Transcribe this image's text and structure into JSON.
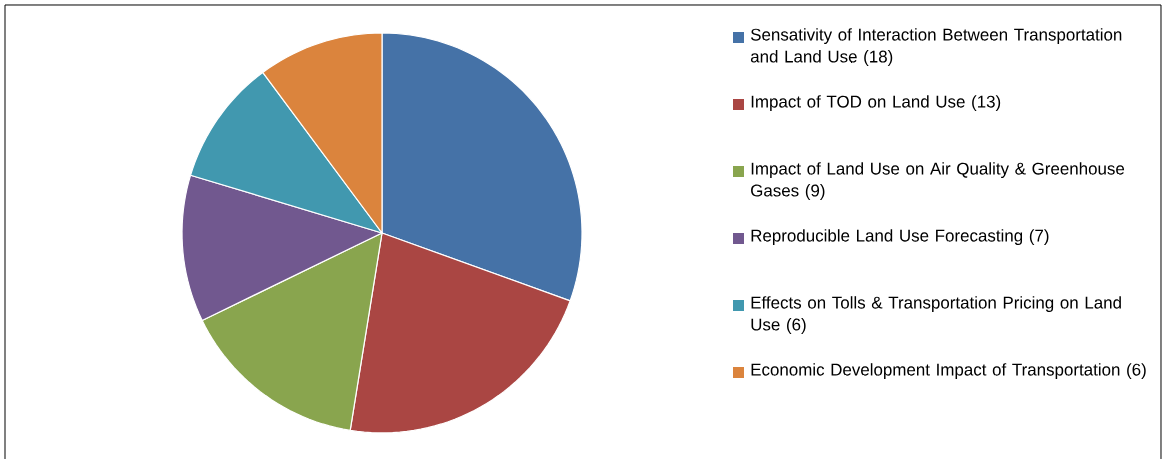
{
  "chart_data": {
    "type": "pie",
    "categories": [
      "Sensativity of Interaction Between Transportation and Land Use (18)",
      "Impact of TOD on Land Use (13)",
      "Impact of Land Use on Air Quality & Greenhouse Gases (9)",
      "Reproducible Land Use Forecasting (7)",
      "Effects on Tolls & Transportation Pricing on Land Use (6)",
      "Economic Development Impact of Transportation (6)"
    ],
    "values": [
      18,
      13,
      9,
      7,
      6,
      6
    ],
    "colors": [
      "#4572a7",
      "#aa4643",
      "#89a54e",
      "#71588f",
      "#4198af",
      "#db843d"
    ],
    "legend": "right"
  }
}
